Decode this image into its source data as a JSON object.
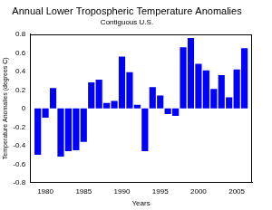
{
  "chart_data": {
    "type": "bar",
    "title": "Annual Lower Tropospheric Temperature Anomalies",
    "subtitle": "Contiguous U.S.",
    "x_label": "Years",
    "y_label": "Temperature Anomalies (degrees C)",
    "x": [
      1979,
      1980,
      1981,
      1982,
      1983,
      1984,
      1985,
      1986,
      1987,
      1988,
      1989,
      1990,
      1991,
      1992,
      1993,
      1994,
      1995,
      1996,
      1997,
      1998,
      1999,
      2000,
      2001,
      2002,
      2003,
      2004,
      2005,
      2006
    ],
    "values": [
      -0.5,
      -0.1,
      0.22,
      -0.52,
      -0.46,
      -0.45,
      -0.36,
      0.28,
      0.31,
      0.06,
      0.08,
      0.56,
      0.39,
      0.04,
      -0.46,
      0.23,
      0.14,
      -0.06,
      -0.08,
      0.66,
      0.76,
      0.48,
      0.41,
      0.21,
      0.36,
      0.12,
      0.42,
      0.65
    ],
    "color": "#0000ff",
    "xlim": [
      1978,
      2007
    ],
    "xticks": [
      1980,
      1985,
      1990,
      1995,
      2000,
      2005
    ],
    "ylim": [
      -0.8,
      0.8
    ],
    "yticks": [
      -0.8,
      -0.6,
      -0.4,
      -0.2,
      0,
      0.2,
      0.4,
      0.6,
      0.8
    ],
    "grid": false
  }
}
